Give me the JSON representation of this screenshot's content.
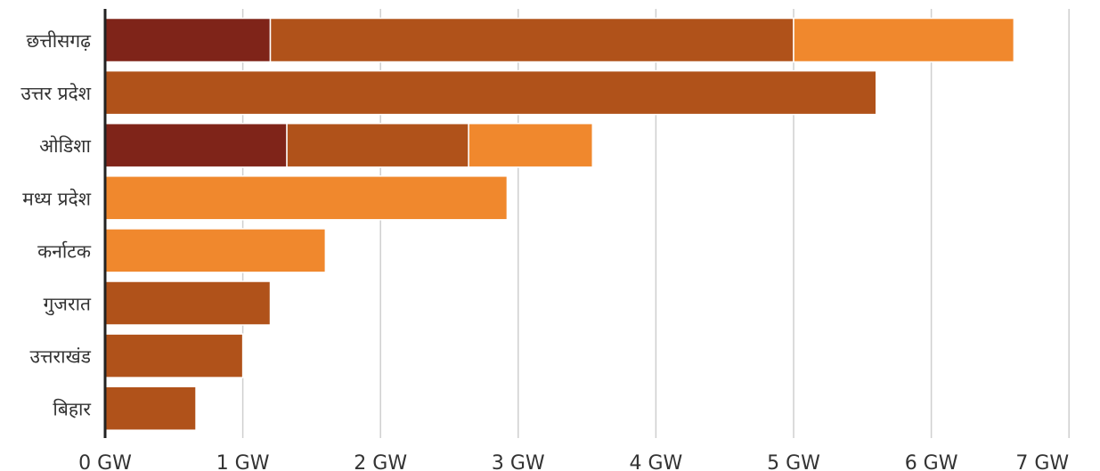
{
  "chart_data": {
    "type": "bar",
    "orientation": "horizontal",
    "stacked": true,
    "categories": [
      "छत्तीसगढ़",
      "उत्तर प्रदेश",
      "ओडिशा",
      "मध्य प्रदेश",
      "कर्नाटक",
      "गुजरात",
      "उत्तराखंड",
      "बिहार"
    ],
    "series": [
      {
        "color": "#7f2419",
        "values": [
          1.2,
          0,
          1.32,
          0,
          0,
          0,
          0,
          0
        ]
      },
      {
        "color": "#b0521a",
        "values": [
          3.8,
          5.6,
          1.32,
          0,
          0,
          1.2,
          1.0,
          0.66
        ]
      },
      {
        "color": "#f0882d",
        "values": [
          1.6,
          0,
          0.9,
          2.92,
          1.6,
          0,
          0,
          0
        ]
      }
    ],
    "xlim": [
      0,
      7
    ],
    "x_ticks": [
      0,
      1,
      2,
      3,
      4,
      5,
      6,
      7
    ],
    "x_tick_labels": [
      "0 GW",
      "1 GW",
      "2 GW",
      "3 GW",
      "4 GW",
      "5 GW",
      "6 GW",
      "7 GW"
    ],
    "grid": true
  }
}
